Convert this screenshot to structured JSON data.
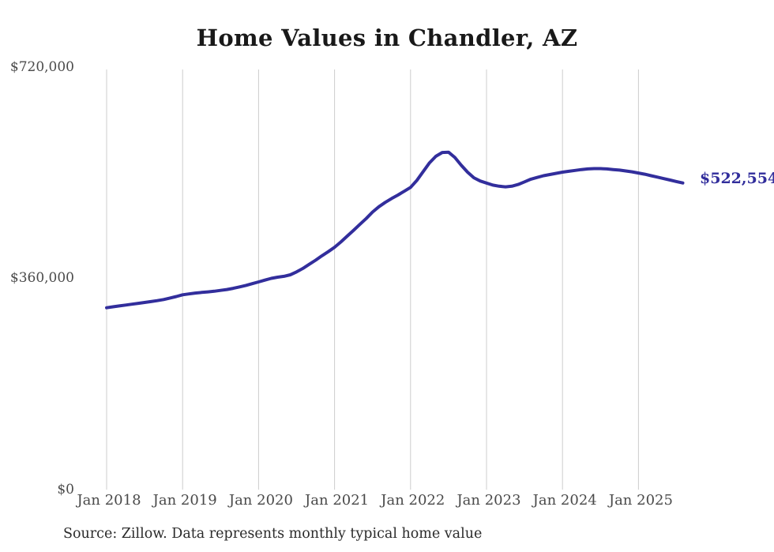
{
  "title": "Home Values in Chandler, AZ",
  "y_axis": {
    "labels": [
      "$720,000",
      "$360,000",
      "$0"
    ]
  },
  "x_axis": {
    "labels": [
      "Jan 2018",
      "Jan 2019",
      "Jan 2020",
      "Jan 2021",
      "Jan 2022",
      "Jan 2023",
      "Jan 2024",
      "Jan 2025"
    ]
  },
  "end_label": "$522,554",
  "source": "Source: Zillow. Data represents monthly typical home value",
  "colors": {
    "line": "#322e9c",
    "end_label": "#322e9c",
    "grid": "#cccccc",
    "title": "#191919",
    "axis_text": "#4a4a4a",
    "source_text": "#2b2b2b",
    "background": "#ffffff"
  },
  "chart_data": {
    "type": "line",
    "title": "Home Values in Chandler, AZ",
    "ylabel": "",
    "xlabel": "",
    "ylim": [
      0,
      720000
    ],
    "y_tick_values": [
      0,
      360000,
      720000
    ],
    "y_tick_labels": [
      "$0",
      "$360,000",
      "$720,000"
    ],
    "x_tick_labels": [
      "Jan 2018",
      "Jan 2019",
      "Jan 2020",
      "Jan 2021",
      "Jan 2022",
      "Jan 2023",
      "Jan 2024",
      "Jan 2025"
    ],
    "gridlines": "vertical-yearly",
    "legend": "none",
    "frequency": "monthly",
    "start_month": "2018-01",
    "end_month": "2025-08",
    "last_value_annotation": "$522,554",
    "months": [
      "2018-01",
      "2018-02",
      "2018-03",
      "2018-04",
      "2018-05",
      "2018-06",
      "2018-07",
      "2018-08",
      "2018-09",
      "2018-10",
      "2018-11",
      "2018-12",
      "2019-01",
      "2019-02",
      "2019-03",
      "2019-04",
      "2019-05",
      "2019-06",
      "2019-07",
      "2019-08",
      "2019-09",
      "2019-10",
      "2019-11",
      "2019-12",
      "2020-01",
      "2020-02",
      "2020-03",
      "2020-04",
      "2020-05",
      "2020-06",
      "2020-07",
      "2020-08",
      "2020-09",
      "2020-10",
      "2020-11",
      "2020-12",
      "2021-01",
      "2021-02",
      "2021-03",
      "2021-04",
      "2021-05",
      "2021-06",
      "2021-07",
      "2021-08",
      "2021-09",
      "2021-10",
      "2021-11",
      "2021-12",
      "2022-01",
      "2022-02",
      "2022-03",
      "2022-04",
      "2022-05",
      "2022-06",
      "2022-07",
      "2022-08",
      "2022-09",
      "2022-10",
      "2022-11",
      "2022-12",
      "2023-01",
      "2023-02",
      "2023-03",
      "2023-04",
      "2023-05",
      "2023-06",
      "2023-07",
      "2023-08",
      "2023-09",
      "2023-10",
      "2023-11",
      "2023-12",
      "2024-01",
      "2024-02",
      "2024-03",
      "2024-04",
      "2024-05",
      "2024-06",
      "2024-07",
      "2024-08",
      "2024-09",
      "2024-10",
      "2024-11",
      "2024-12",
      "2025-01",
      "2025-02",
      "2025-03",
      "2025-04",
      "2025-05",
      "2025-06",
      "2025-07",
      "2025-08"
    ],
    "values": [
      310000,
      311500,
      313000,
      314500,
      316000,
      317500,
      319000,
      320500,
      322000,
      324000,
      326500,
      329000,
      332000,
      333500,
      335000,
      336000,
      337000,
      338000,
      339500,
      341000,
      343000,
      345500,
      348000,
      351000,
      354000,
      357000,
      360000,
      362000,
      363500,
      366000,
      371000,
      377000,
      384000,
      391000,
      398500,
      405500,
      413000,
      422000,
      432000,
      442000,
      452000,
      462000,
      473000,
      482000,
      489500,
      496000,
      502000,
      508500,
      515000,
      527000,
      542000,
      557000,
      568000,
      574500,
      575000,
      566000,
      553000,
      541000,
      531500,
      526000,
      522500,
      519000,
      517000,
      516000,
      517000,
      520000,
      524500,
      529000,
      532000,
      535000,
      537000,
      539000,
      541000,
      542500,
      544000,
      545500,
      546500,
      547000,
      547000,
      546500,
      545500,
      544500,
      543000,
      541500,
      539500,
      537500,
      535000,
      532500,
      530000,
      527500,
      525000,
      522554
    ]
  }
}
